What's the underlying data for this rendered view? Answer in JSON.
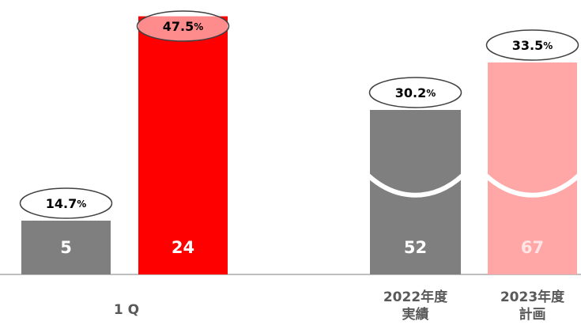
{
  "chart_data": [
    {
      "type": "bar",
      "group_label": "1 Q",
      "values": [
        5,
        24
      ],
      "colors": [
        "#7f7f7f",
        "#ff0000"
      ],
      "ratios": [
        14.7,
        47.5
      ],
      "ratio_unit": "%",
      "ylim": [
        0,
        25
      ]
    },
    {
      "type": "bar",
      "categories": [
        [
          "2022年度",
          "実績"
        ],
        [
          "2023年度",
          "計画"
        ]
      ],
      "values": [
        52,
        67
      ],
      "colors": [
        "#7f7f7f",
        "#ffa6a6"
      ],
      "ratios": [
        30.2,
        33.5
      ],
      "ratio_unit": "%",
      "ylim": [
        0,
        85
      ],
      "axis_break": true
    }
  ]
}
